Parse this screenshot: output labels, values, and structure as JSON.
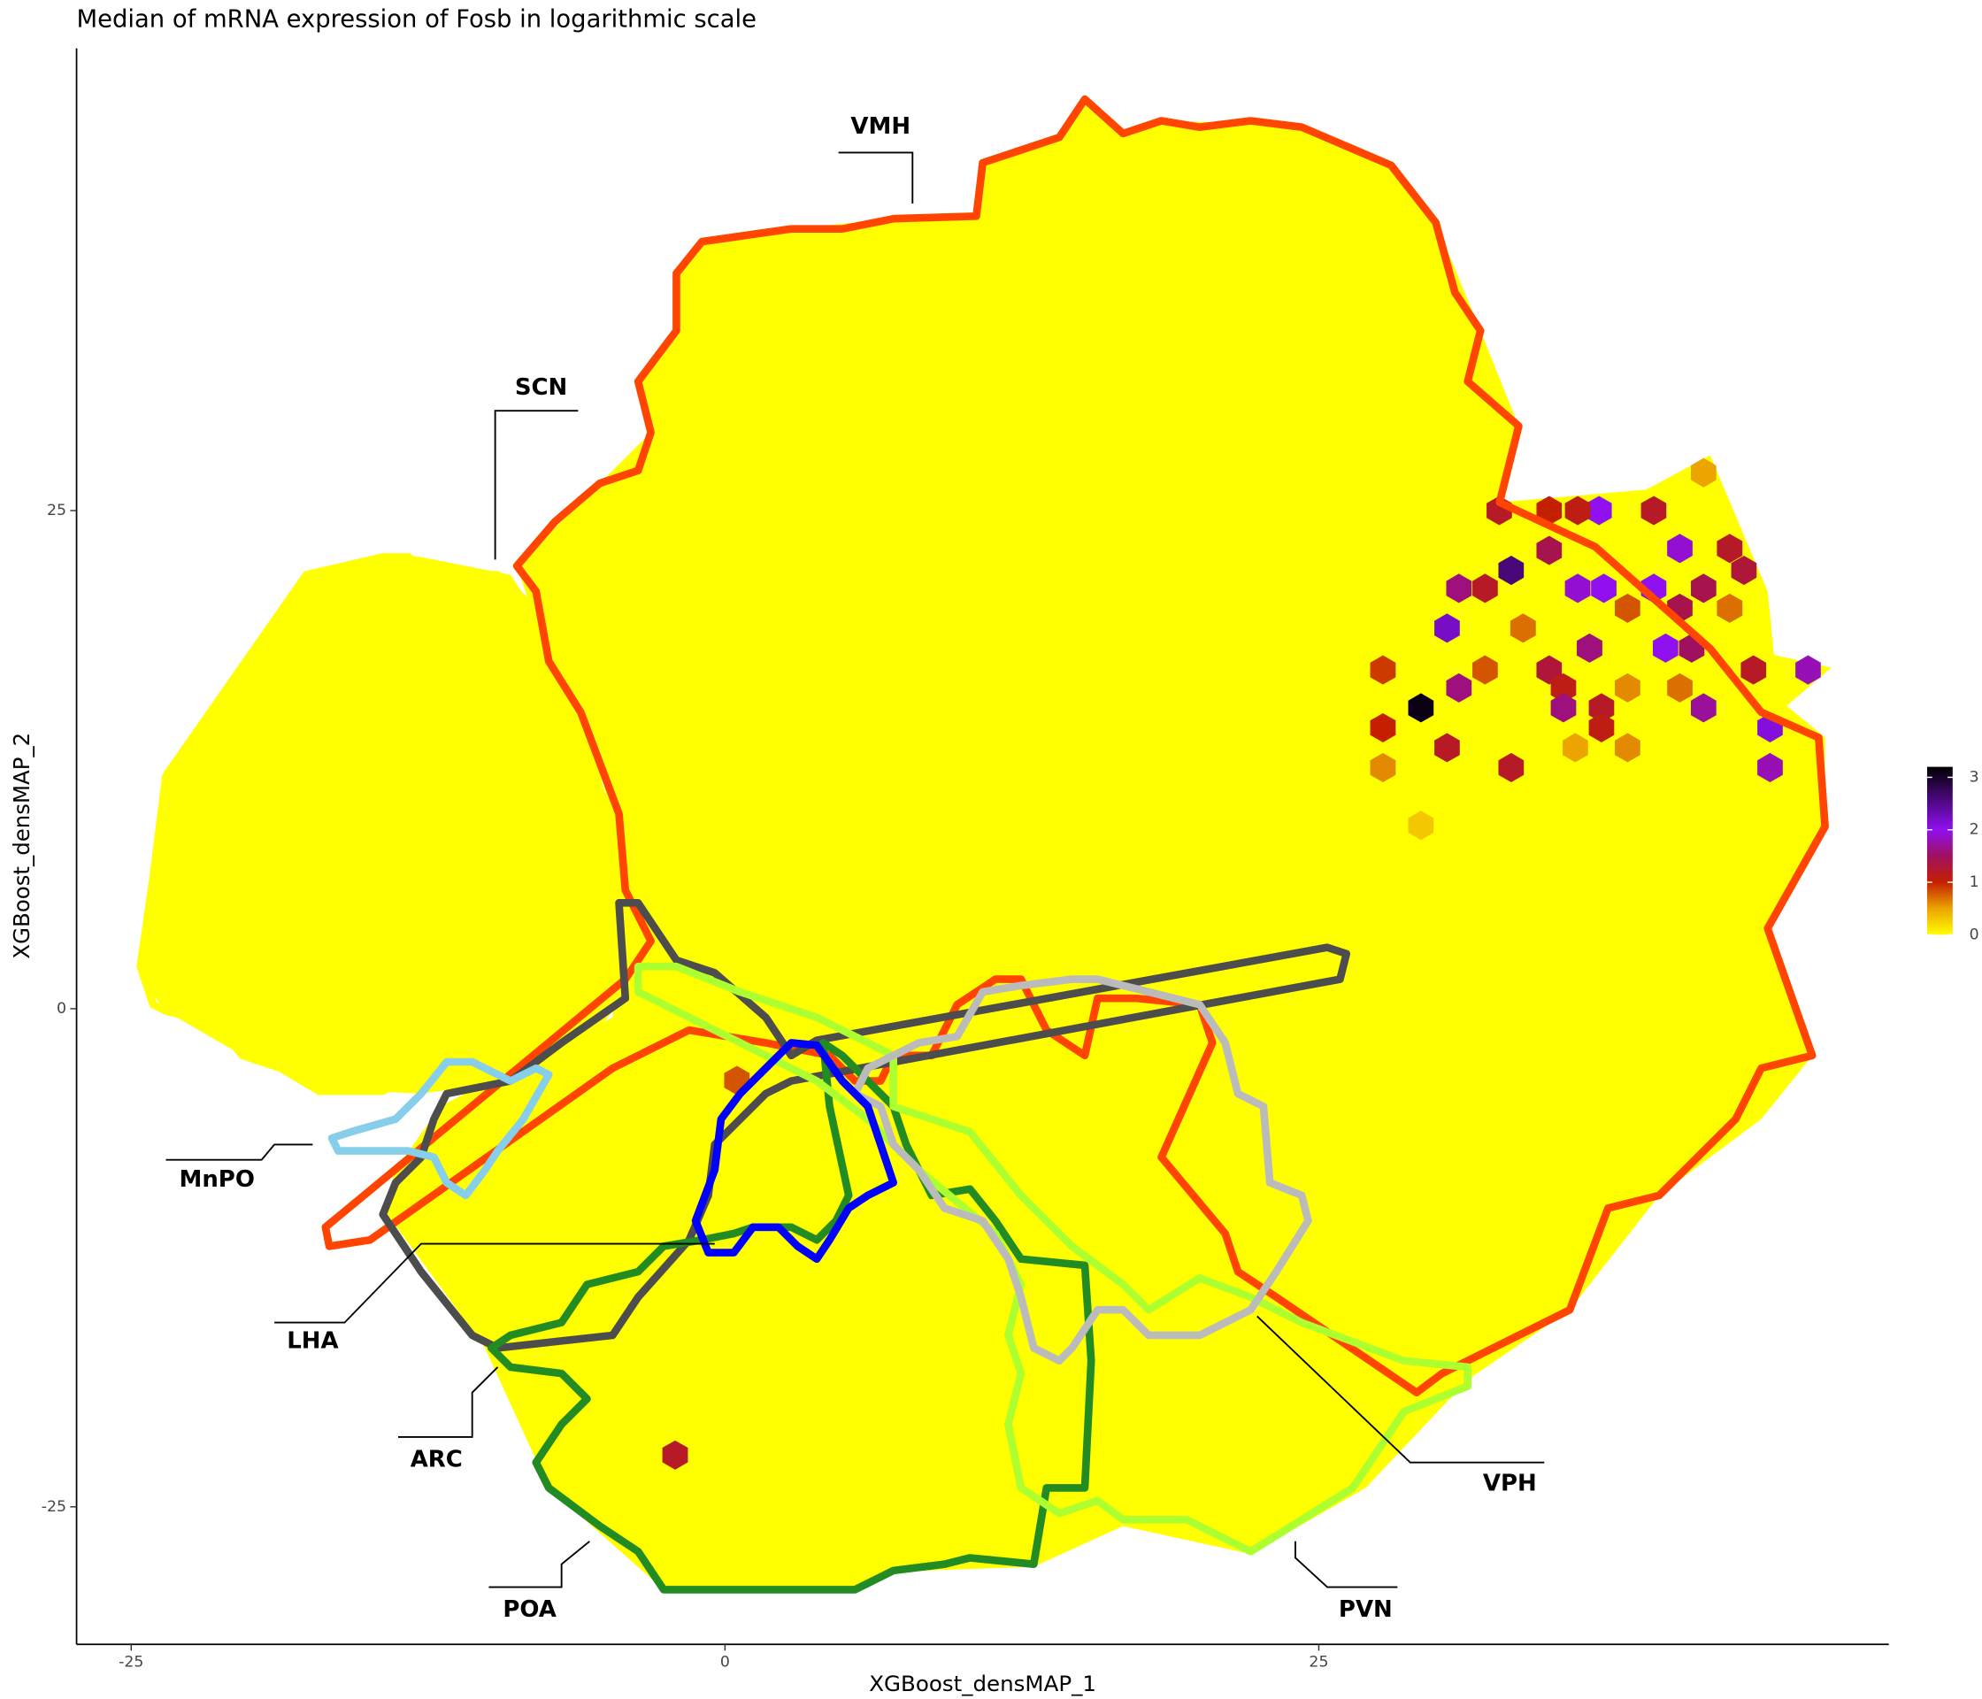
{
  "chart_data": {
    "type": "hexbin",
    "title": "Median of mRNA expression of Fosb in logarithmic scale",
    "x_label": "XGBoost_densMAP_1",
    "y_label": "XGBoost_densMAP_2",
    "xlim": [
      -27.3,
      49
    ],
    "ylim": [
      -31.9,
      48.2
    ],
    "xticks": [
      -25,
      0,
      25
    ],
    "yticks": [
      -25,
      0,
      25
    ],
    "background_fill": "#ffff00",
    "hexes": {
      "x": [
        29.3,
        33.1,
        30.4,
        36.8,
        40.2,
        44.0,
        44.0,
        45.6,
        41.2,
        39.1,
        34.7,
        35.9,
        32.6,
        27.7,
        29.3,
        33.1,
        30.4,
        27.7,
        27.7,
        30.9,
        32.0,
        34.7,
        35.9,
        37.0,
        39.1,
        41.2,
        42.9,
        42.3,
        39.6,
        40.7,
        36.4,
        34.7,
        30.9,
        35.3,
        35.3,
        41.2,
        36.9,
        38.0,
        43.3,
        40.2,
        35.8,
        38.0,
        36.9,
        32.0,
        33.6,
        38.0,
        40.2,
        42.3,
        0.5,
        -2.1
      ],
      "y": [
        15.1,
        22.0,
        19.1,
        25.0,
        23.1,
        14.1,
        12.1,
        17.0,
        26.9,
        25.0,
        25.0,
        25.0,
        25.0,
        12.1,
        9.2,
        12.1,
        13.1,
        14.1,
        17.0,
        21.1,
        21.1,
        23.0,
        21.1,
        21.1,
        21.1,
        21.1,
        22.0,
        23.1,
        18.1,
        18.1,
        18.1,
        17.0,
        16.1,
        16.1,
        15.1,
        15.1,
        15.1,
        16.1,
        17.0,
        16.1,
        13.1,
        13.1,
        14.1,
        17.0,
        19.1,
        20.1,
        20.1,
        20.1,
        -3.6,
        -22.4
      ],
      "values": [
        3.1,
        2.6,
        2.2,
        2.0,
        1.9,
        2.1,
        1.8,
        1.8,
        0.5,
        1.2,
        1.0,
        1.1,
        1.2,
        0.6,
        0.3,
        1.2,
        1.2,
        1.0,
        0.9,
        1.6,
        1.2,
        1.4,
        1.9,
        2.0,
        2.0,
        1.4,
        1.3,
        1.2,
        2.0,
        1.5,
        1.6,
        1.3,
        1.6,
        1.1,
        1.6,
        1.7,
        1.2,
        0.6,
        1.2,
        0.7,
        0.5,
        0.6,
        1.1,
        0.8,
        0.7,
        0.8,
        1.4,
        0.7,
        0.8,
        1.2
      ]
    },
    "colorscale": [
      [
        0,
        "#ffff00"
      ],
      [
        0.5,
        "#eba400"
      ],
      [
        1,
        "#c42000"
      ],
      [
        1.5,
        "#a01060"
      ],
      [
        2,
        "#9010f0"
      ],
      [
        3.2,
        "#000000"
      ]
    ],
    "clim": [
      0,
      3.2
    ],
    "colorbar_ticks": [
      0,
      1,
      2,
      3
    ],
    "regions": [
      {
        "name": "VMH",
        "color": "#ff4500"
      },
      {
        "name": "SCN",
        "color": "#ffff00"
      },
      {
        "name": "MnPO",
        "color": "#87ceeb"
      },
      {
        "name": "LHA",
        "color": "#4d4d4d"
      },
      {
        "name": "ARC",
        "color": "#0000ff"
      },
      {
        "name": "POA",
        "color": "#228b22"
      },
      {
        "name": "PVN",
        "color": "#adff2f"
      },
      {
        "name": "VPH",
        "color": "#bbbbbb"
      }
    ]
  }
}
